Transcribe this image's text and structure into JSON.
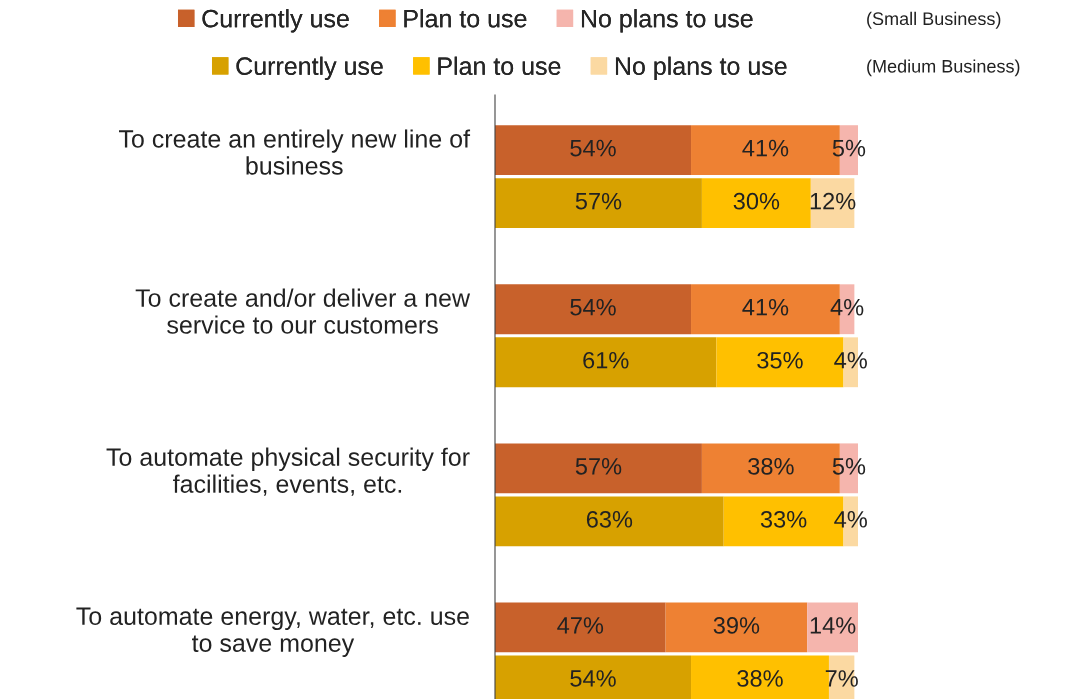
{
  "chart_data": {
    "type": "bar",
    "orientation": "horizontal",
    "stacked": true,
    "categories": [
      "To create an entirely new line of\nbusiness",
      null,
      null,
      "To create and/or deliver a new\nservice to our customers",
      null,
      null,
      "To automate physical security for\nfacilities, events, etc.",
      null,
      null,
      "To automate energy, water, etc. use\nto save money",
      null
    ],
    "tick_labels": "y",
    "grid": false,
    "legend": "top",
    "series": [
      {
        "name": "Currently use",
        "color": "#c8612b",
        "values": [
          54,
          null,
          null,
          54,
          null,
          null,
          57,
          null,
          null,
          47,
          null
        ],
        "value_labels": [
          "54%",
          null,
          null,
          "54%",
          null,
          null,
          "57%",
          null,
          null,
          "47%",
          null
        ]
      },
      {
        "name": "Plan to use",
        "color": "#ee8133",
        "values": [
          41,
          null,
          null,
          41,
          null,
          null,
          38,
          null,
          null,
          39,
          null
        ],
        "value_labels": [
          "41%",
          null,
          null,
          "41%",
          null,
          null,
          "38%",
          null,
          null,
          "39%",
          null
        ]
      },
      {
        "name": "No plans to use",
        "color": "#f5b5ad",
        "values": [
          5,
          null,
          null,
          4,
          null,
          null,
          5,
          null,
          null,
          14,
          null
        ],
        "value_labels": [
          "5%",
          null,
          null,
          "4%",
          null,
          null,
          "5%",
          null,
          null,
          "14%",
          null
        ]
      },
      {
        "name": "Currently use",
        "color": "#d7a100",
        "values": [
          null,
          57,
          null,
          null,
          61,
          null,
          null,
          63,
          null,
          null,
          54
        ],
        "value_labels": [
          null,
          "57%",
          null,
          null,
          "61%",
          null,
          null,
          "63%",
          null,
          null,
          "54%"
        ]
      },
      {
        "name": "Plan to use",
        "color": "#ffc000",
        "values": [
          null,
          30,
          null,
          null,
          35,
          null,
          null,
          33,
          null,
          null,
          38
        ],
        "value_labels": [
          null,
          "30%",
          null,
          null,
          "35%",
          null,
          null,
          "33%",
          null,
          null,
          "38%"
        ]
      },
      {
        "name": "No plans to use",
        "color": "#fbd9a2",
        "values": [
          null,
          12,
          null,
          null,
          4,
          null,
          null,
          4,
          null,
          null,
          7
        ],
        "value_labels": [
          null,
          "12%",
          null,
          null,
          "4%",
          null,
          null,
          "4%",
          null,
          null,
          "7%"
        ]
      }
    ],
    "annotations": [
      "(Small Business)",
      "(Medium Business)"
    ]
  }
}
